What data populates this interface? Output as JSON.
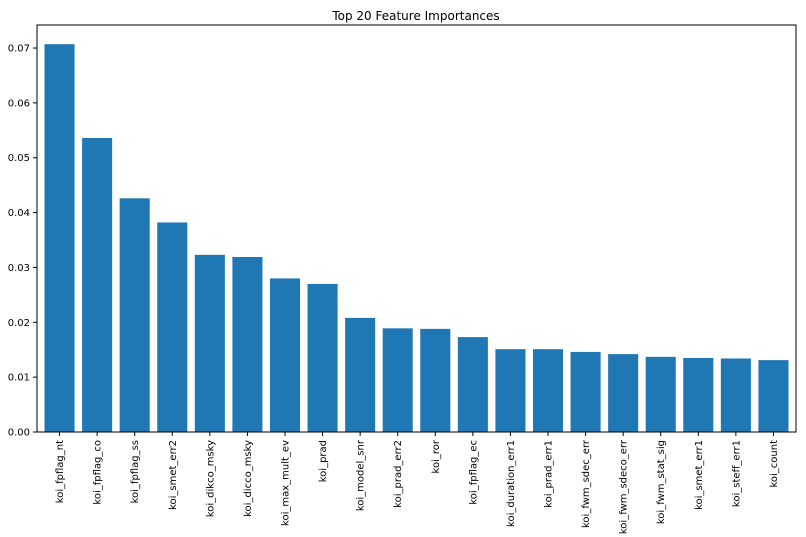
{
  "chart_data": {
    "type": "bar",
    "title": "Top 20 Feature Importances",
    "xlabel": "",
    "ylabel": "",
    "categories": [
      "koi_fpflag_nt",
      "koi_fpflag_co",
      "koi_fpflag_ss",
      "koi_smet_err2",
      "koi_dikco_msky",
      "koi_dicco_msky",
      "koi_max_mult_ev",
      "koi_prad",
      "koi_model_snr",
      "koi_prad_err2",
      "koi_ror",
      "koi_fpflag_ec",
      "koi_duration_err1",
      "koi_prad_err1",
      "koi_fwm_sdec_err",
      "koi_fwm_sdeco_err",
      "koi_fwm_stat_sig",
      "koi_smet_err1",
      "koi_steff_err1",
      "koi_count"
    ],
    "values": [
      0.0707,
      0.0536,
      0.0426,
      0.0382,
      0.0323,
      0.0319,
      0.028,
      0.027,
      0.0208,
      0.0189,
      0.0188,
      0.0173,
      0.0151,
      0.0151,
      0.0146,
      0.0142,
      0.0137,
      0.0135,
      0.0134,
      0.0131
    ],
    "yticks": [
      "0.00",
      "0.01",
      "0.02",
      "0.03",
      "0.04",
      "0.05",
      "0.06",
      "0.07"
    ],
    "ylim": [
      0,
      0.0742
    ],
    "bar_color": "#1f77b4",
    "grid": false,
    "legend": "none"
  }
}
